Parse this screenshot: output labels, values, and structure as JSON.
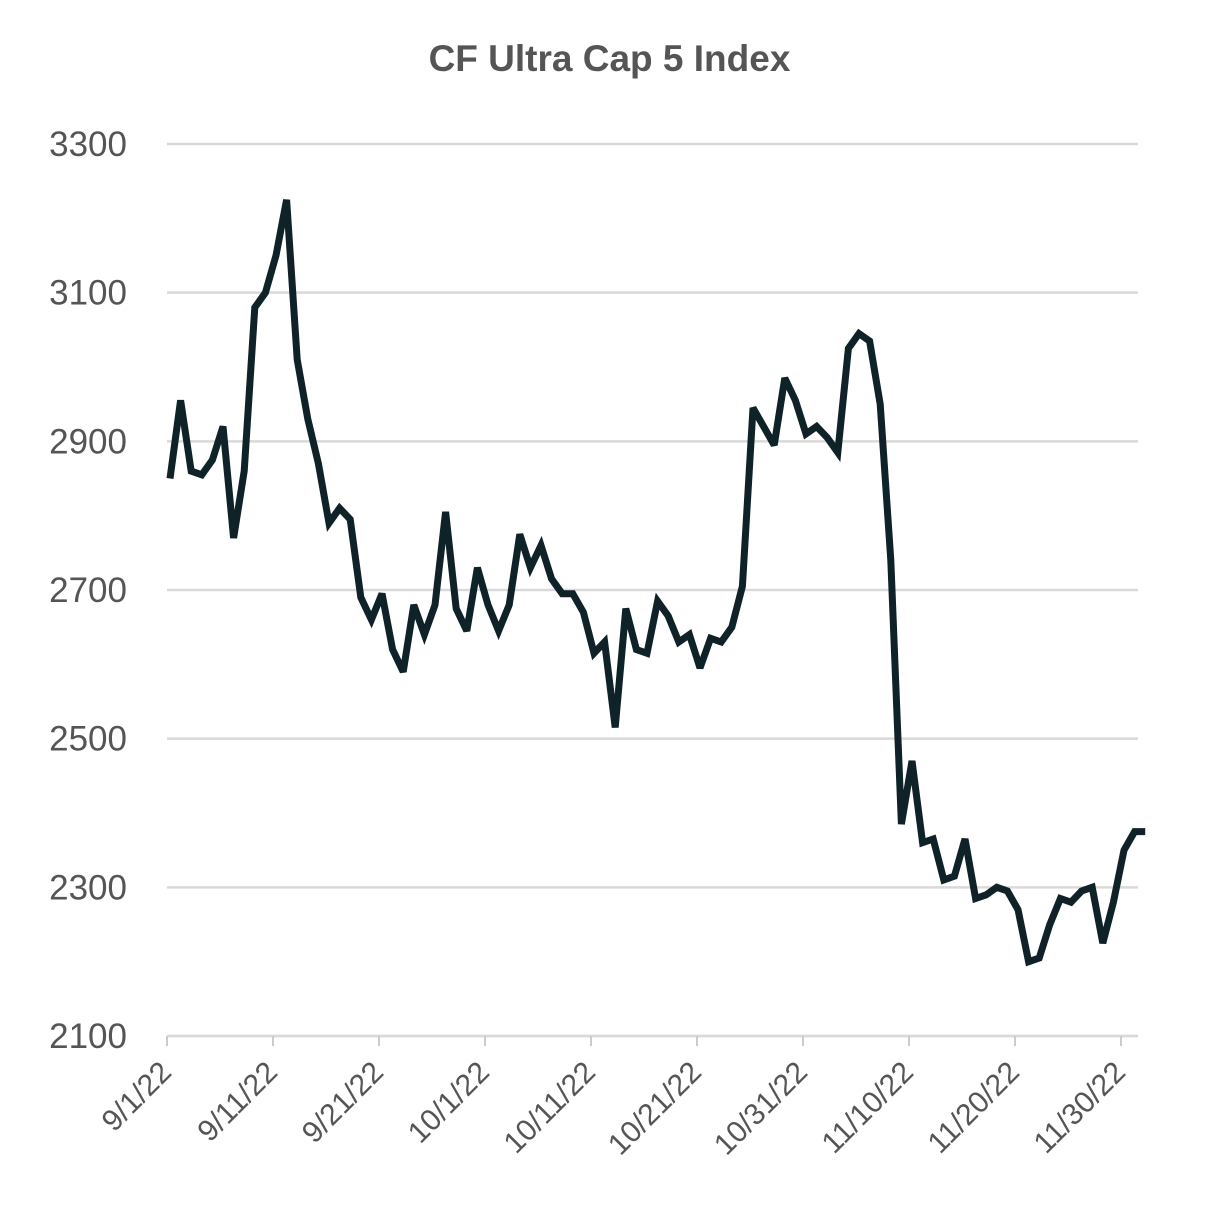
{
  "chart_data": {
    "type": "line",
    "title": "CF Ultra Cap 5 Index",
    "xlabel": "",
    "ylabel": "",
    "ylim": [
      2100,
      3300
    ],
    "yticks": [
      2100,
      2300,
      2500,
      2700,
      2900,
      3100,
      3300
    ],
    "ytick_labels": [
      "2100",
      "2300",
      "2500",
      "2700",
      "2900",
      "3100",
      "3300"
    ],
    "xlim_days": [
      0,
      92
    ],
    "xticks_days": [
      0,
      10,
      20,
      30,
      40,
      50,
      60,
      70,
      80,
      90
    ],
    "xtick_labels": [
      "9/1/22",
      "9/11/22",
      "9/21/22",
      "10/1/22",
      "10/11/22",
      "10/21/22",
      "10/31/22",
      "11/10/22",
      "11/20/22",
      "11/30/22"
    ],
    "grid": true,
    "color": "#0f2228",
    "series": [
      {
        "name": "CF Ultra Cap 5 Index",
        "x_days": [
          0,
          1,
          2,
          3,
          4,
          5,
          6,
          7,
          8,
          9,
          10,
          11,
          12,
          13,
          14,
          15,
          16,
          17,
          18,
          19,
          20,
          21,
          22,
          23,
          24,
          25,
          26,
          27,
          28,
          29,
          30,
          31,
          32,
          33,
          34,
          35,
          36,
          37,
          38,
          39,
          40,
          41,
          42,
          43,
          44,
          45,
          46,
          47,
          48,
          49,
          50,
          51,
          52,
          53,
          54,
          55,
          56,
          57,
          58,
          59,
          60,
          61,
          62,
          63,
          64,
          65,
          66,
          67,
          68,
          69,
          70,
          71,
          72,
          73,
          74,
          75,
          76,
          77,
          78,
          79,
          80,
          81,
          82,
          83,
          84,
          85,
          86,
          87,
          88,
          89,
          90,
          91,
          92
        ],
        "values": [
          2850,
          2955,
          2860,
          2855,
          2875,
          2920,
          2770,
          2860,
          3080,
          3100,
          3150,
          3225,
          3010,
          2930,
          2870,
          2790,
          2810,
          2795,
          2690,
          2660,
          2695,
          2620,
          2590,
          2680,
          2640,
          2680,
          2805,
          2675,
          2645,
          2730,
          2680,
          2645,
          2680,
          2775,
          2730,
          2760,
          2715,
          2695,
          2695,
          2670,
          2615,
          2630,
          2515,
          2675,
          2620,
          2615,
          2685,
          2665,
          2630,
          2640,
          2595,
          2635,
          2630,
          2650,
          2705,
          2945,
          2920,
          2895,
          2985,
          2955,
          2910,
          2920,
          2905,
          2885,
          3025,
          3045,
          3035,
          2950,
          2740,
          2385,
          2470,
          2360,
          2365,
          2310,
          2315,
          2365,
          2285,
          2290,
          2300,
          2295,
          2270,
          2200,
          2205,
          2250,
          2285,
          2280,
          2295,
          2300,
          2225,
          2280,
          2350,
          2375,
          2375
        ]
      }
    ]
  }
}
